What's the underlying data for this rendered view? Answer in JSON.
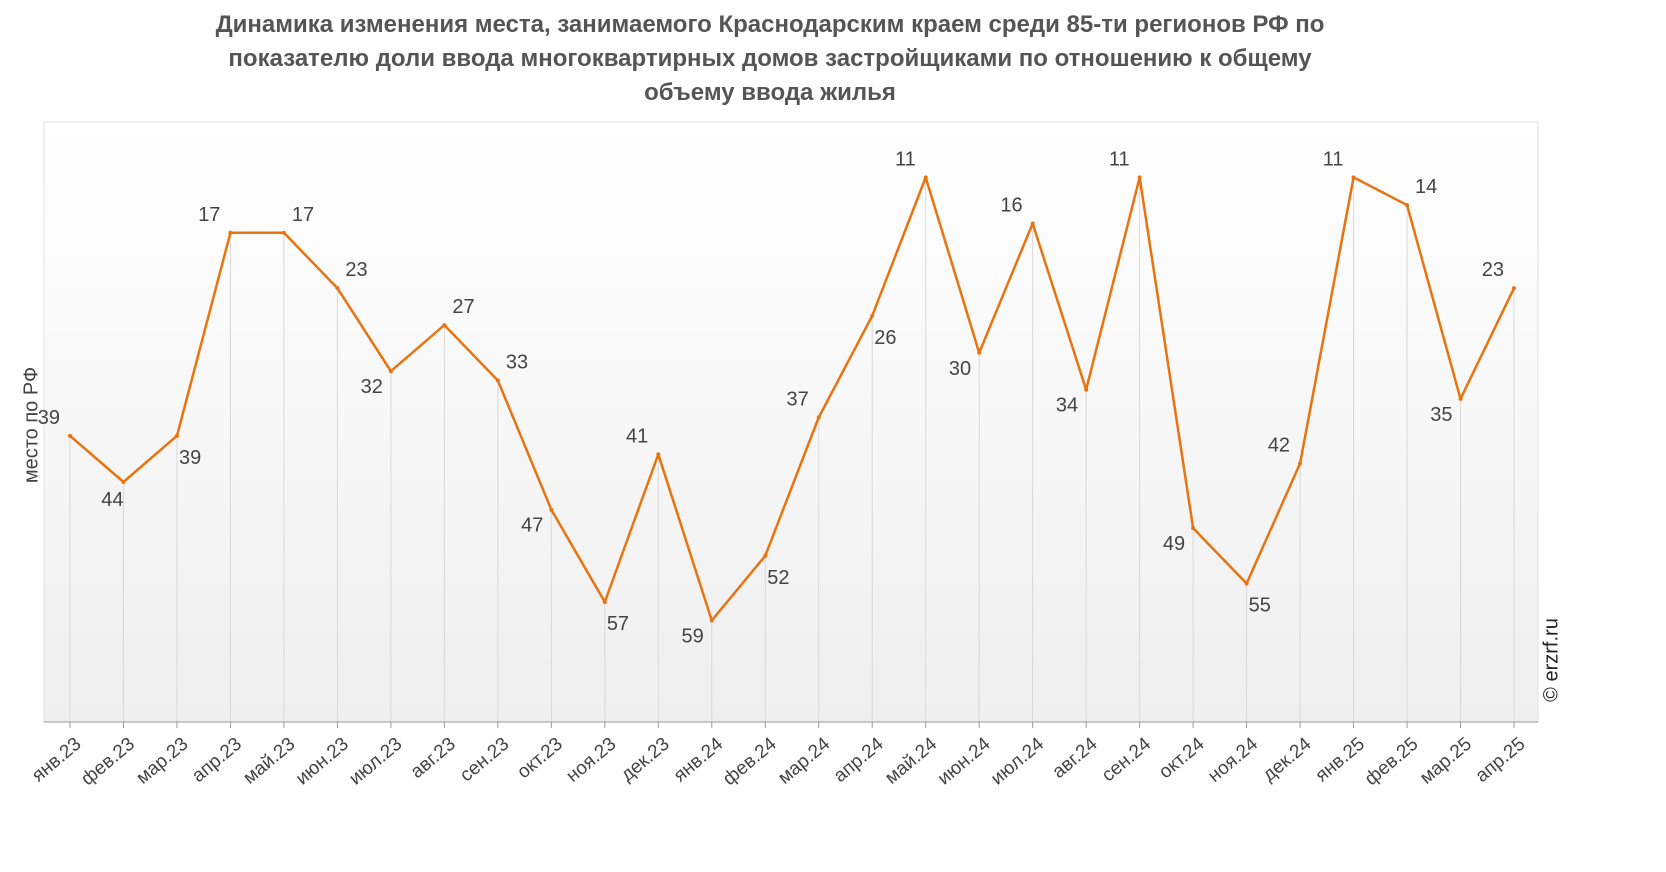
{
  "chart_data": {
    "type": "line",
    "title": "Динамика изменения места, занимаемого Краснодарским краем среди 85-ти регионов РФ по показателю доли ввода многоквартирных домов застройщиками по отношению к общему объему ввода жилья",
    "title_lines": [
      "Динамика изменения места, занимаемого Краснодарским краем среди 85-ти регионов РФ по",
      "показателю доли ввода многоквартирных домов застройщиками по отношению к общему",
      "объему ввода жилья"
    ],
    "xlabel": "",
    "ylabel": "место по РФ",
    "ylim": [
      70,
      5
    ],
    "y_inverted": true,
    "grid": "vertical",
    "categories": [
      "янв.23",
      "фев.23",
      "мар.23",
      "апр.23",
      "май.23",
      "июн.23",
      "июл.23",
      "авг.23",
      "сен.23",
      "окт.23",
      "ноя.23",
      "дек.23",
      "янв.24",
      "фев.24",
      "мар.24",
      "апр.24",
      "май.24",
      "июн.24",
      "июл.24",
      "авг.24",
      "сен.24",
      "окт.24",
      "ноя.24",
      "дек.24",
      "янв.25",
      "фев.25",
      "мар.25",
      "апр.25"
    ],
    "series": [
      {
        "name": "место по РФ",
        "color": "#e8730f",
        "values": [
          39,
          44,
          39,
          17,
          17,
          23,
          32,
          27,
          33,
          47,
          57,
          41,
          59,
          52,
          37,
          26,
          11,
          30,
          16,
          34,
          11,
          49,
          55,
          42,
          11,
          14,
          35,
          23
        ]
      }
    ],
    "credit": "© erzrf.ru"
  }
}
